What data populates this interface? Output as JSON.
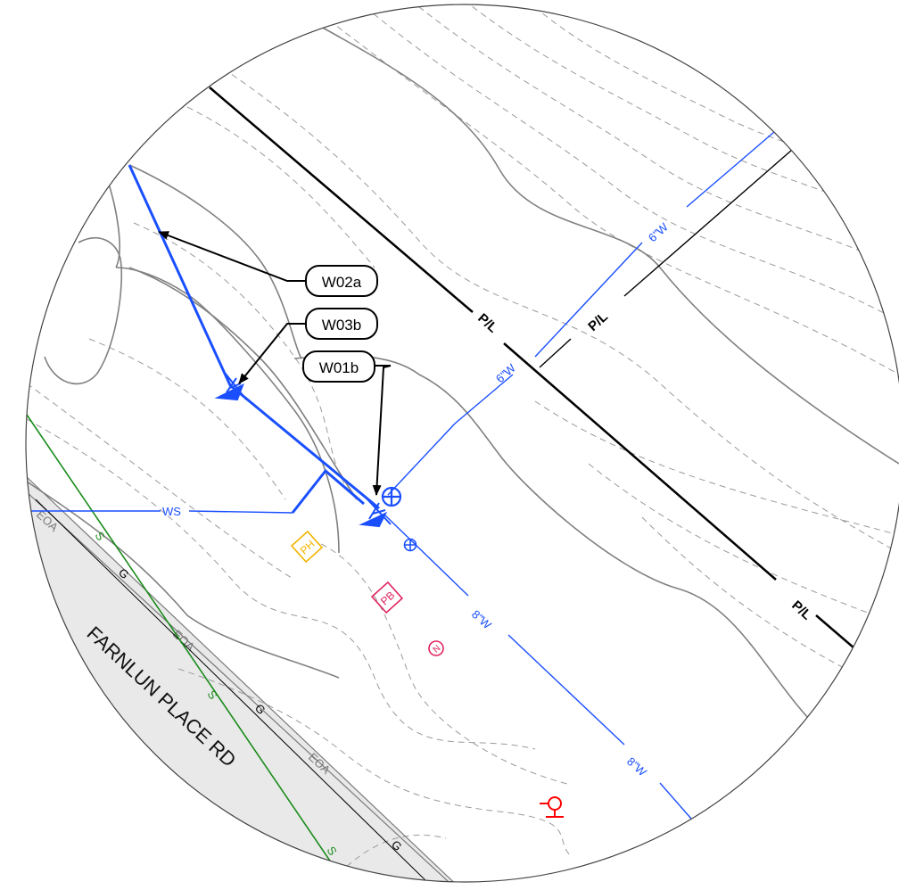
{
  "road": {
    "name": "FARNLUN PLACE RD"
  },
  "property_line": {
    "label": "P/L",
    "color": "#000000"
  },
  "water": {
    "color": "#1a4fff",
    "main_6in_label": "6\"W",
    "main_8in_label": "8\"W",
    "service_label": "WS"
  },
  "sewer": {
    "label": "S",
    "color": "#1a8c1a"
  },
  "gas": {
    "label": "G",
    "color": "#000000"
  },
  "edge_of_asphalt": {
    "label": "EOA",
    "color": "#777777"
  },
  "callouts": [
    {
      "id": "W02a",
      "label": "W02a"
    },
    {
      "id": "W03b",
      "label": "W03b"
    },
    {
      "id": "W01b",
      "label": "W01b"
    }
  ],
  "markers": [
    {
      "label": "PH",
      "color": "#f2b400"
    },
    {
      "label": "PB",
      "color": "#e0245e"
    },
    {
      "label": "N",
      "color": "#e0245e"
    }
  ],
  "hydrant_color": "#ff0000"
}
